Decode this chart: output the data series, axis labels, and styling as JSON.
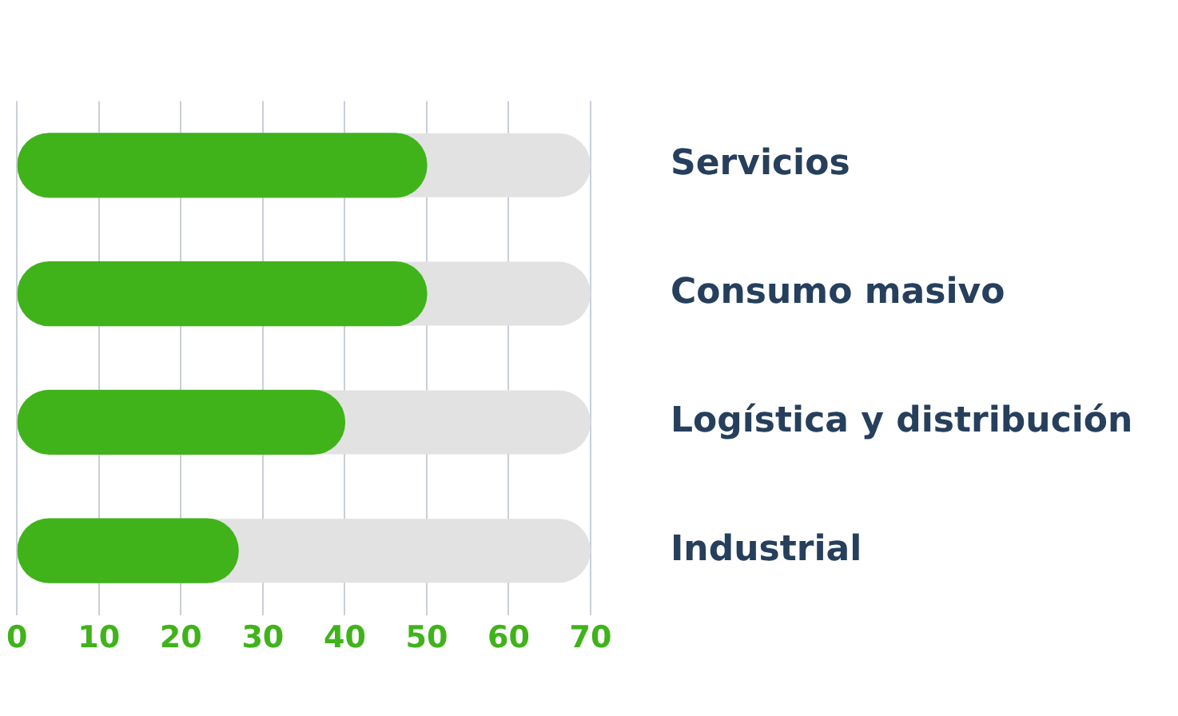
{
  "chart_data": {
    "type": "bar",
    "orientation": "horizontal",
    "categories": [
      "Servicios",
      "Consumo masivo",
      "Logística y distribución",
      "Industrial"
    ],
    "values": [
      50,
      50,
      40,
      27
    ],
    "color": "#40b31b",
    "xlim": [
      0,
      70
    ],
    "xticks": [
      0,
      10,
      20,
      30,
      40,
      50,
      60,
      70
    ],
    "grid": "x",
    "legend": false
  }
}
